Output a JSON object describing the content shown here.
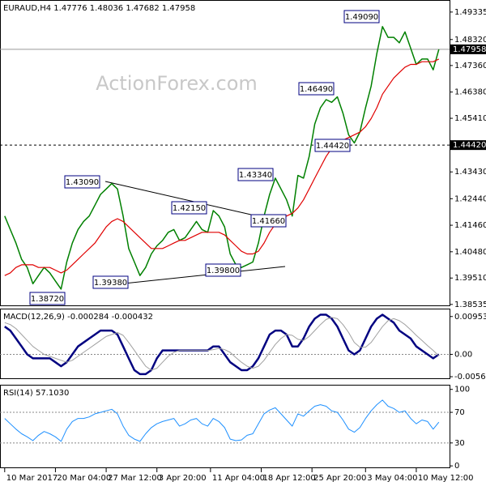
{
  "chart_data": [
    {
      "type": "line",
      "title": "EURAUD,H4  1.47776 1.48036 1.47682 1.47958",
      "watermark": "ActionForex.com",
      "x": [
        0,
        1,
        2,
        3,
        4,
        5,
        6,
        7,
        8,
        9,
        10,
        11,
        12,
        13,
        14,
        15,
        16,
        17,
        18,
        19,
        20,
        21,
        22,
        23,
        24,
        25,
        26,
        27,
        28,
        29,
        30,
        31,
        32,
        33,
        34,
        35,
        36,
        37,
        38,
        39,
        40,
        41,
        42,
        43,
        44,
        45,
        46,
        47,
        48,
        49,
        50,
        51,
        52,
        53,
        54,
        55,
        56,
        57,
        58,
        59,
        60,
        61,
        62,
        63,
        64,
        65,
        66,
        67,
        68,
        69,
        70,
        71,
        72,
        73,
        74,
        75,
        76,
        77
      ],
      "xlim": [
        -0.4,
        78.9
      ],
      "ylim": [
        1.3847,
        1.4975
      ],
      "yticks": [
        1.49335,
        {
          "value": 1.4832,
          "label": "1.48320"
        },
        {
          "value": 1.4736,
          "label": "1.47360"
        },
        {
          "value": 1.4638,
          "label": "1.46380"
        },
        {
          "value": 1.4541,
          "label": "1.45410"
        },
        {
          "value": 1.4343,
          "label": "1.43430"
        },
        {
          "value": 1.4244,
          "label": "1.42440"
        },
        {
          "value": 1.4146,
          "label": "1.41460"
        },
        {
          "value": 1.4048,
          "label": "1.40480"
        },
        {
          "value": 1.3951,
          "label": "1.39510"
        },
        1.38535
      ],
      "series": [
        {
          "name": "EURAUD",
          "color": "#008000",
          "width": 1.5,
          "values": [
            1.418,
            1.413,
            1.408,
            1.402,
            1.399,
            1.393,
            1.396,
            1.399,
            1.397,
            1.394,
            1.391,
            1.401,
            1.408,
            1.413,
            1.416,
            1.418,
            1.422,
            1.426,
            1.428,
            1.43,
            1.428,
            1.418,
            1.406,
            1.401,
            1.396,
            1.399,
            1.404,
            1.407,
            1.409,
            1.412,
            1.413,
            1.409,
            1.41,
            1.413,
            1.416,
            1.413,
            1.412,
            1.42,
            1.418,
            1.414,
            1.404,
            1.4,
            1.399,
            1.4,
            1.401,
            1.408,
            1.418,
            1.426,
            1.432,
            1.428,
            1.424,
            1.418,
            1.433,
            1.432,
            1.44,
            1.452,
            1.458,
            1.461,
            1.46,
            1.462,
            1.456,
            1.448,
            1.445,
            1.449,
            1.458,
            1.466,
            1.478,
            1.488,
            1.484,
            1.484,
            1.482,
            1.486,
            1.48,
            1.474,
            1.476,
            1.476,
            1.472,
            1.47958
          ]
        },
        {
          "name": "MA",
          "color": "#e00000",
          "width": 1.2,
          "values": [
            1.396,
            1.397,
            1.399,
            1.4,
            1.4,
            1.4,
            1.399,
            1.399,
            1.399,
            1.398,
            1.397,
            1.398,
            1.4,
            1.402,
            1.404,
            1.406,
            1.408,
            1.411,
            1.414,
            1.416,
            1.417,
            1.416,
            1.414,
            1.412,
            1.41,
            1.408,
            1.406,
            1.406,
            1.406,
            1.407,
            1.408,
            1.409,
            1.409,
            1.41,
            1.411,
            1.412,
            1.412,
            1.412,
            1.412,
            1.411,
            1.409,
            1.407,
            1.405,
            1.404,
            1.404,
            1.405,
            1.408,
            1.412,
            1.415,
            1.417,
            1.418,
            1.419,
            1.421,
            1.424,
            1.428,
            1.432,
            1.436,
            1.44,
            1.443,
            1.445,
            1.446,
            1.447,
            1.448,
            1.449,
            1.451,
            1.454,
            1.458,
            1.463,
            1.466,
            1.469,
            1.471,
            1.473,
            1.474,
            1.474,
            1.475,
            1.475,
            1.475,
            1.476
          ]
        }
      ],
      "annotations": [
        "1.49090",
        "1.46490",
        "1.44420",
        "1.43340",
        "1.43090",
        "1.42150",
        "1.41660",
        "1.39380",
        "1.39800",
        "1.38720"
      ],
      "price_tags": [
        1.47958,
        {
          "value": 1.4442,
          "label": "1.44420"
        }
      ]
    },
    {
      "type": "line",
      "title": "MACD(12,26,9) -0.000284 -0.000432",
      "x": [
        0,
        1,
        2,
        3,
        4,
        5,
        6,
        7,
        8,
        9,
        10,
        11,
        12,
        13,
        14,
        15,
        16,
        17,
        18,
        19,
        20,
        21,
        22,
        23,
        24,
        25,
        26,
        27,
        28,
        29,
        30,
        31,
        32,
        33,
        34,
        35,
        36,
        37,
        38,
        39,
        40,
        41,
        42,
        43,
        44,
        45,
        46,
        47,
        48,
        49,
        50,
        51,
        52,
        53,
        54,
        55,
        56,
        57,
        58,
        59,
        60,
        61,
        62,
        63,
        64,
        65,
        66,
        67,
        68,
        69,
        70,
        71,
        72,
        73,
        74,
        75,
        76,
        77
      ],
      "xlim": [
        -0.4,
        78.9
      ],
      "ylim": [
        -0.00624,
        0.01133
      ],
      "yticks": [
        0.009538,
        {
          "value": 0,
          "label": "0.00"
        },
        -0.005637
      ],
      "level_lines": [
        0
      ],
      "series": [
        {
          "name": "MACD",
          "color": "#000080",
          "width": 2.5,
          "values": [
            0.007,
            0.006,
            0.004,
            0.002,
            0,
            -0.001,
            -0.001,
            -0.001,
            -0.001,
            -0.002,
            -0.003,
            -0.002,
            0,
            0.002,
            0.003,
            0.004,
            0.005,
            0.006,
            0.006,
            0.006,
            0.005,
            0.002,
            -0.001,
            -0.004,
            -0.005,
            -0.005,
            -0.004,
            -0.001,
            0.001,
            0.001,
            0.001,
            0.001,
            0.001,
            0.001,
            0.001,
            0.001,
            0.001,
            0.002,
            0.002,
            0,
            -0.002,
            -0.003,
            -0.004,
            -0.004,
            -0.003,
            -0.001,
            0.002,
            0.005,
            0.006,
            0.006,
            0.005,
            0.002,
            0.002,
            0.004,
            0.007,
            0.009,
            0.01,
            0.01,
            0.009,
            0.007,
            0.004,
            0.001,
            0,
            0.001,
            0.004,
            0.007,
            0.009,
            0.01,
            0.009,
            0.008,
            0.006,
            0.005,
            0.004,
            0.002,
            0.001,
            0,
            -0.001,
            0
          ]
        },
        {
          "name": "Signal",
          "color": "#a0a0a0",
          "width": 1,
          "values": [
            0.008,
            0.0075,
            0.0065,
            0.005,
            0.0035,
            0.002,
            0.001,
            0,
            -0.0005,
            -0.001,
            -0.0015,
            -0.002,
            -0.0015,
            -0.0005,
            0.0005,
            0.0015,
            0.0025,
            0.0035,
            0.0045,
            0.005,
            0.0055,
            0.0048,
            0.003,
            0.001,
            -0.001,
            -0.003,
            -0.004,
            -0.0035,
            -0.002,
            -0.0005,
            0.0005,
            0.001,
            0.001,
            0.001,
            0.001,
            0.001,
            0.001,
            0.0012,
            0.0015,
            0.0012,
            0.0005,
            -0.0008,
            -0.002,
            -0.003,
            -0.0035,
            -0.003,
            -0.0015,
            0.0005,
            0.0025,
            0.004,
            0.005,
            0.0048,
            0.0038,
            0.0035,
            0.0045,
            0.006,
            0.0075,
            0.0088,
            0.0093,
            0.009,
            0.0075,
            0.0055,
            0.003,
            0.0018,
            0.0018,
            0.003,
            0.005,
            0.007,
            0.0085,
            0.009,
            0.0085,
            0.0075,
            0.0062,
            0.0048,
            0.0035,
            0.0022,
            0.001,
            -0.0004
          ]
        }
      ]
    },
    {
      "type": "line",
      "title": "RSI(14) 57.1030",
      "x": [
        0,
        1,
        2,
        3,
        4,
        5,
        6,
        7,
        8,
        9,
        10,
        11,
        12,
        13,
        14,
        15,
        16,
        17,
        18,
        19,
        20,
        21,
        22,
        23,
        24,
        25,
        26,
        27,
        28,
        29,
        30,
        31,
        32,
        33,
        34,
        35,
        36,
        37,
        38,
        39,
        40,
        41,
        42,
        43,
        44,
        45,
        46,
        47,
        48,
        49,
        50,
        51,
        52,
        53,
        54,
        55,
        56,
        57,
        58,
        59,
        60,
        61,
        62,
        63,
        64,
        65,
        66,
        67,
        68,
        69,
        70,
        71,
        72,
        73,
        74,
        75,
        76,
        77
      ],
      "xlim": [
        -0.4,
        78.9
      ],
      "ylim": [
        -3,
        105
      ],
      "yticks": [
        100,
        70,
        30,
        0
      ],
      "level_lines": [
        70,
        30
      ],
      "xticks": [
        {
          "value": 0,
          "label": "10 Mar 2017"
        },
        {
          "value": 9,
          "label": "20 Mar 04:00"
        },
        {
          "value": 18,
          "label": "27 Mar 12:00"
        },
        {
          "value": 27,
          "label": "3 Apr 20:00"
        },
        {
          "value": 36.5,
          "label": "11 Apr 04:00"
        },
        {
          "value": 45.5,
          "label": "18 Apr 12:00"
        },
        {
          "value": 54.5,
          "label": "25 Apr 20:00"
        },
        {
          "value": 64,
          "label": "3 May 04:00"
        },
        {
          "value": 73,
          "label": "10 May 12:00"
        }
      ],
      "series": [
        {
          "name": "RSI",
          "color": "#1e90ff",
          "width": 1,
          "values": [
            62,
            55,
            48,
            42,
            38,
            33,
            40,
            45,
            42,
            38,
            32,
            48,
            58,
            62,
            62,
            64,
            68,
            70,
            72,
            74,
            68,
            52,
            40,
            35,
            32,
            42,
            50,
            55,
            58,
            60,
            62,
            52,
            55,
            60,
            62,
            55,
            52,
            62,
            58,
            50,
            35,
            33,
            34,
            40,
            42,
            55,
            68,
            73,
            76,
            68,
            60,
            52,
            68,
            65,
            72,
            78,
            80,
            78,
            72,
            70,
            60,
            48,
            44,
            50,
            62,
            72,
            80,
            86,
            78,
            75,
            70,
            72,
            62,
            55,
            60,
            58,
            48,
            57.103
          ]
        }
      ]
    }
  ]
}
